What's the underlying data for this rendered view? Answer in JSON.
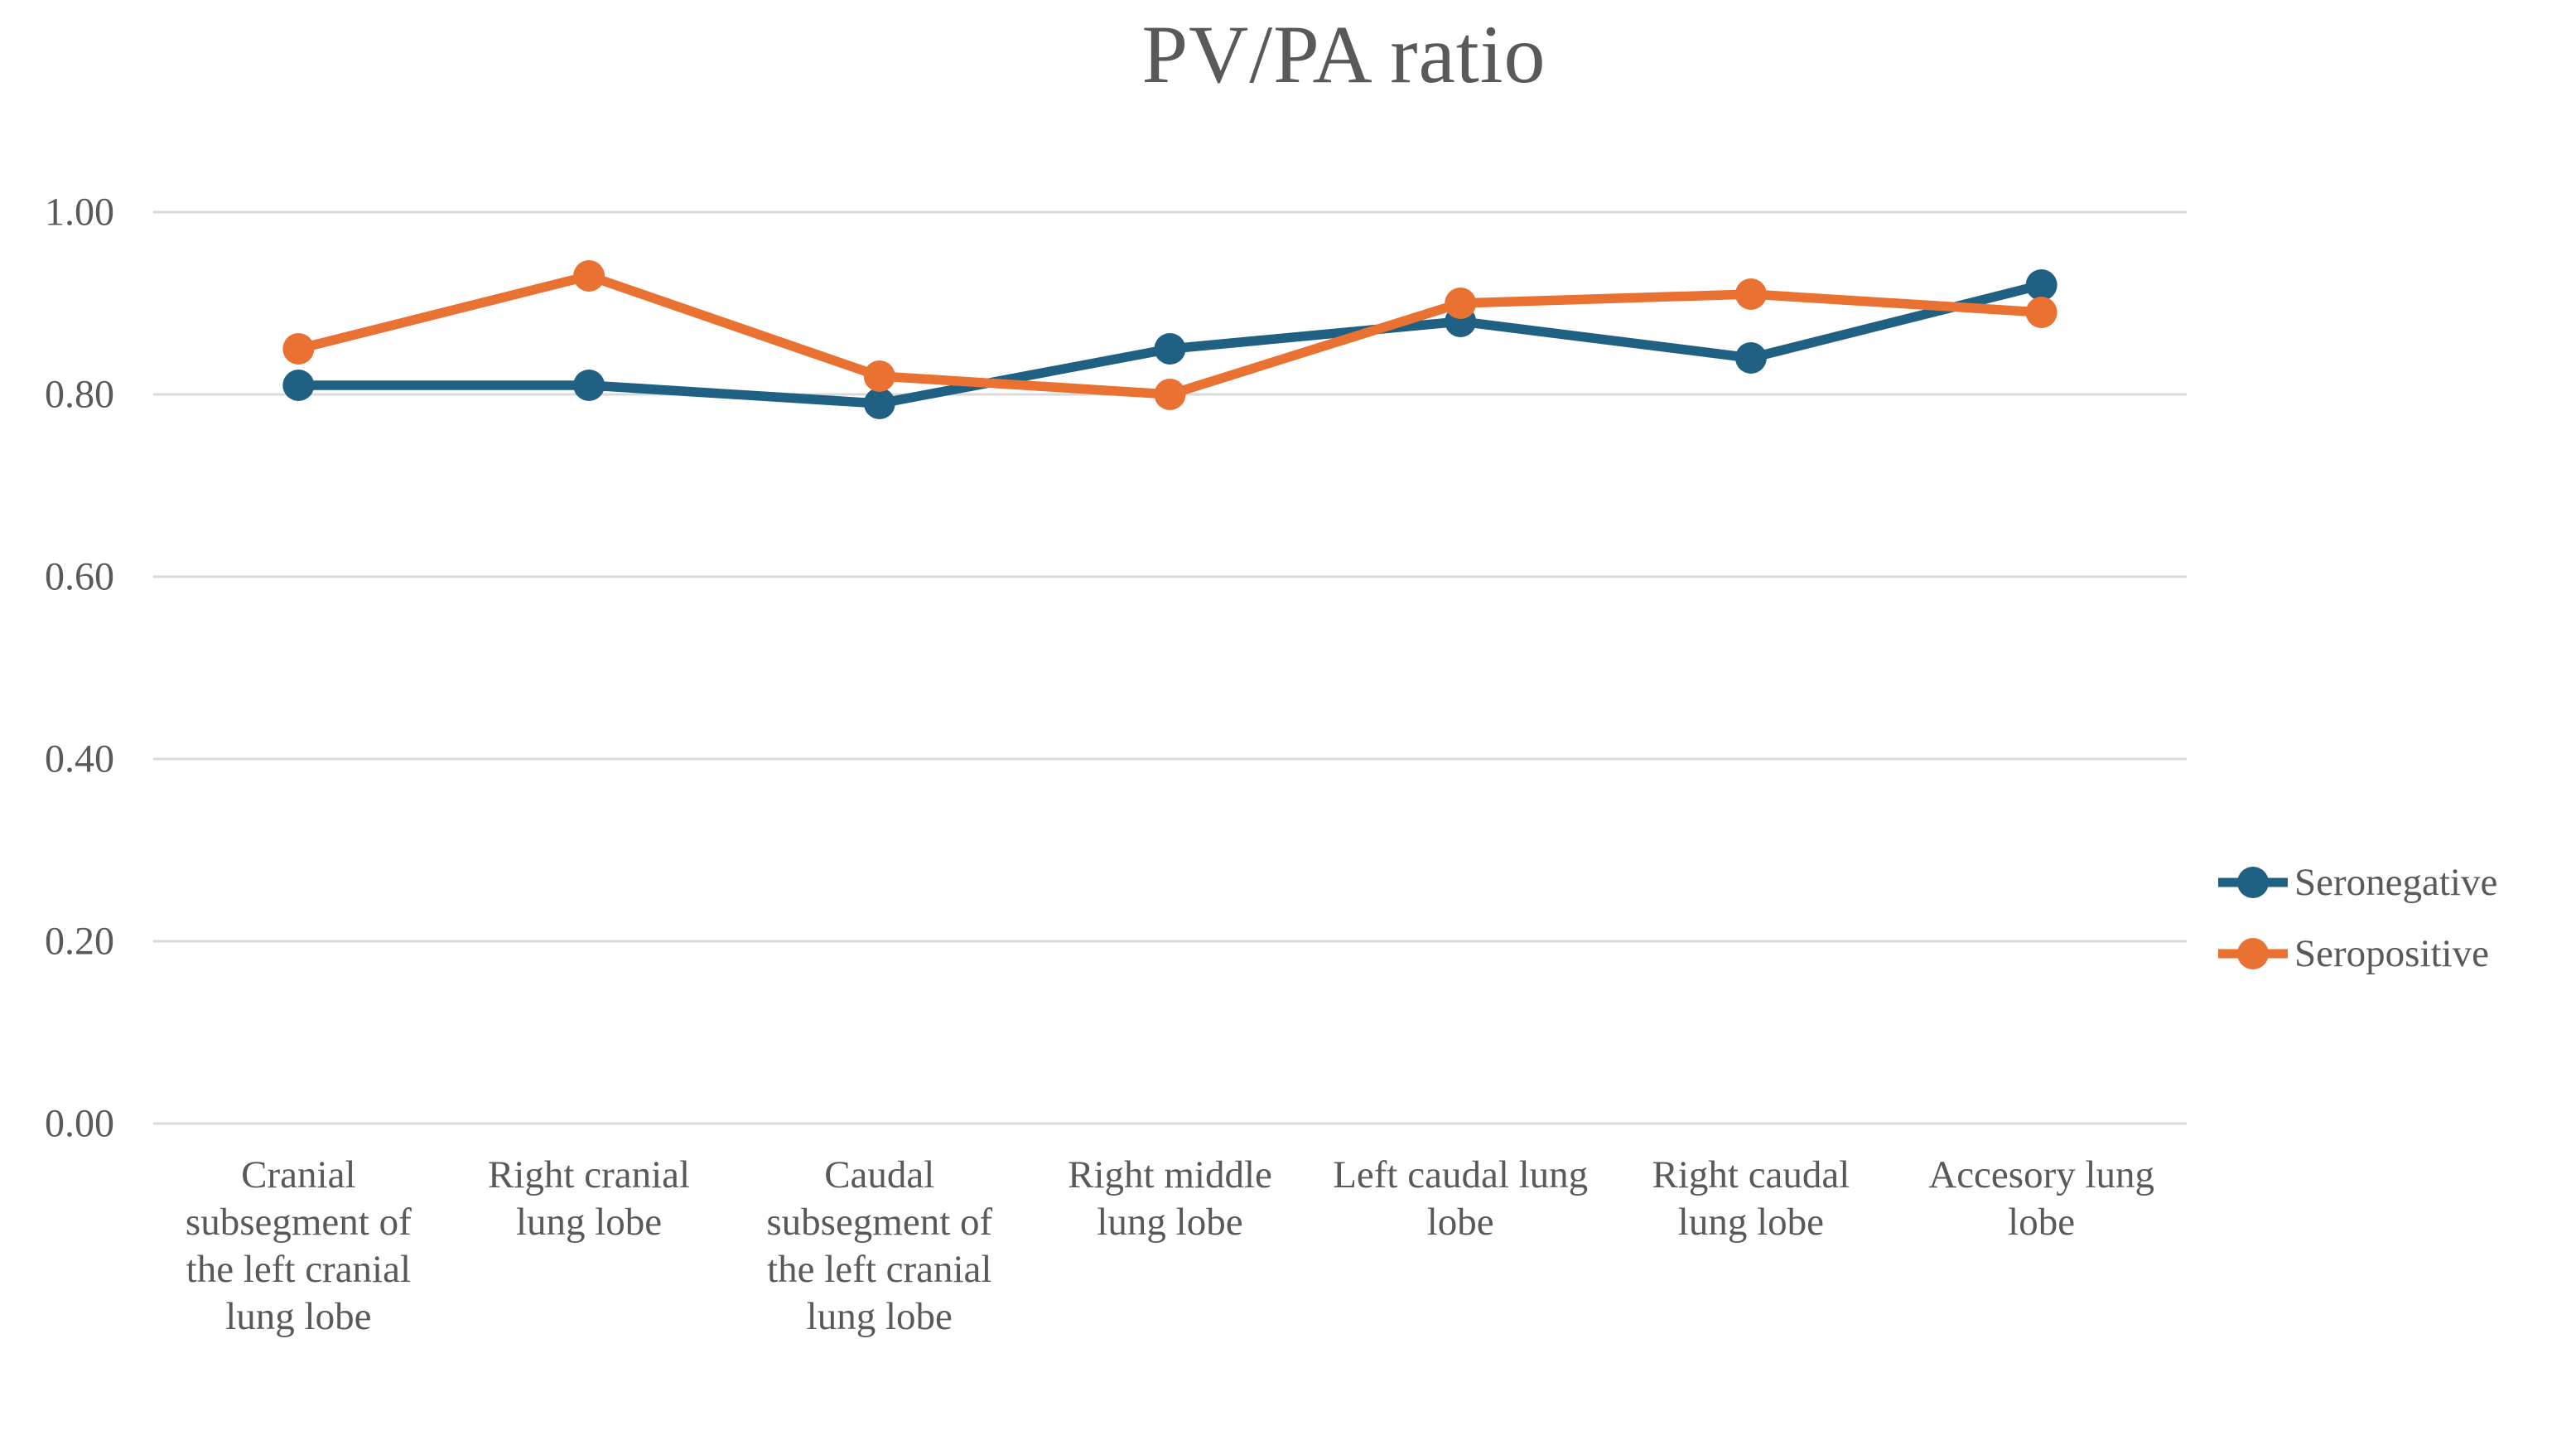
{
  "chart_data": {
    "type": "line",
    "title": "PV/PA ratio",
    "categories": [
      "Cranial subsegment of the left cranial lung lobe",
      "Right cranial lung lobe",
      "Caudal subsegment of the left cranial lung lobe",
      "Right middle lung lobe",
      "Left caudal lung lobe",
      "Right caudal lung lobe",
      "Accesory lung lobe"
    ],
    "series": [
      {
        "name": "Seronegative",
        "color": "#1F6083",
        "values": [
          0.81,
          0.81,
          0.79,
          0.85,
          0.88,
          0.84,
          0.92
        ]
      },
      {
        "name": "Seropositive",
        "color": "#E97132",
        "values": [
          0.85,
          0.93,
          0.82,
          0.8,
          0.9,
          0.91,
          0.89
        ]
      }
    ],
    "ylim": [
      0,
      1
    ],
    "yticks": [
      0.0,
      0.2,
      0.4,
      0.6,
      0.8,
      1.0
    ],
    "ytick_labels": [
      "0.00",
      "0.20",
      "0.40",
      "0.60",
      "0.80",
      "1.00"
    ],
    "xlabel": "",
    "ylabel": "",
    "grid": "horizontal",
    "legend_position": "right",
    "text_color": "#595959",
    "gridline_color": "#D9D9D9"
  }
}
